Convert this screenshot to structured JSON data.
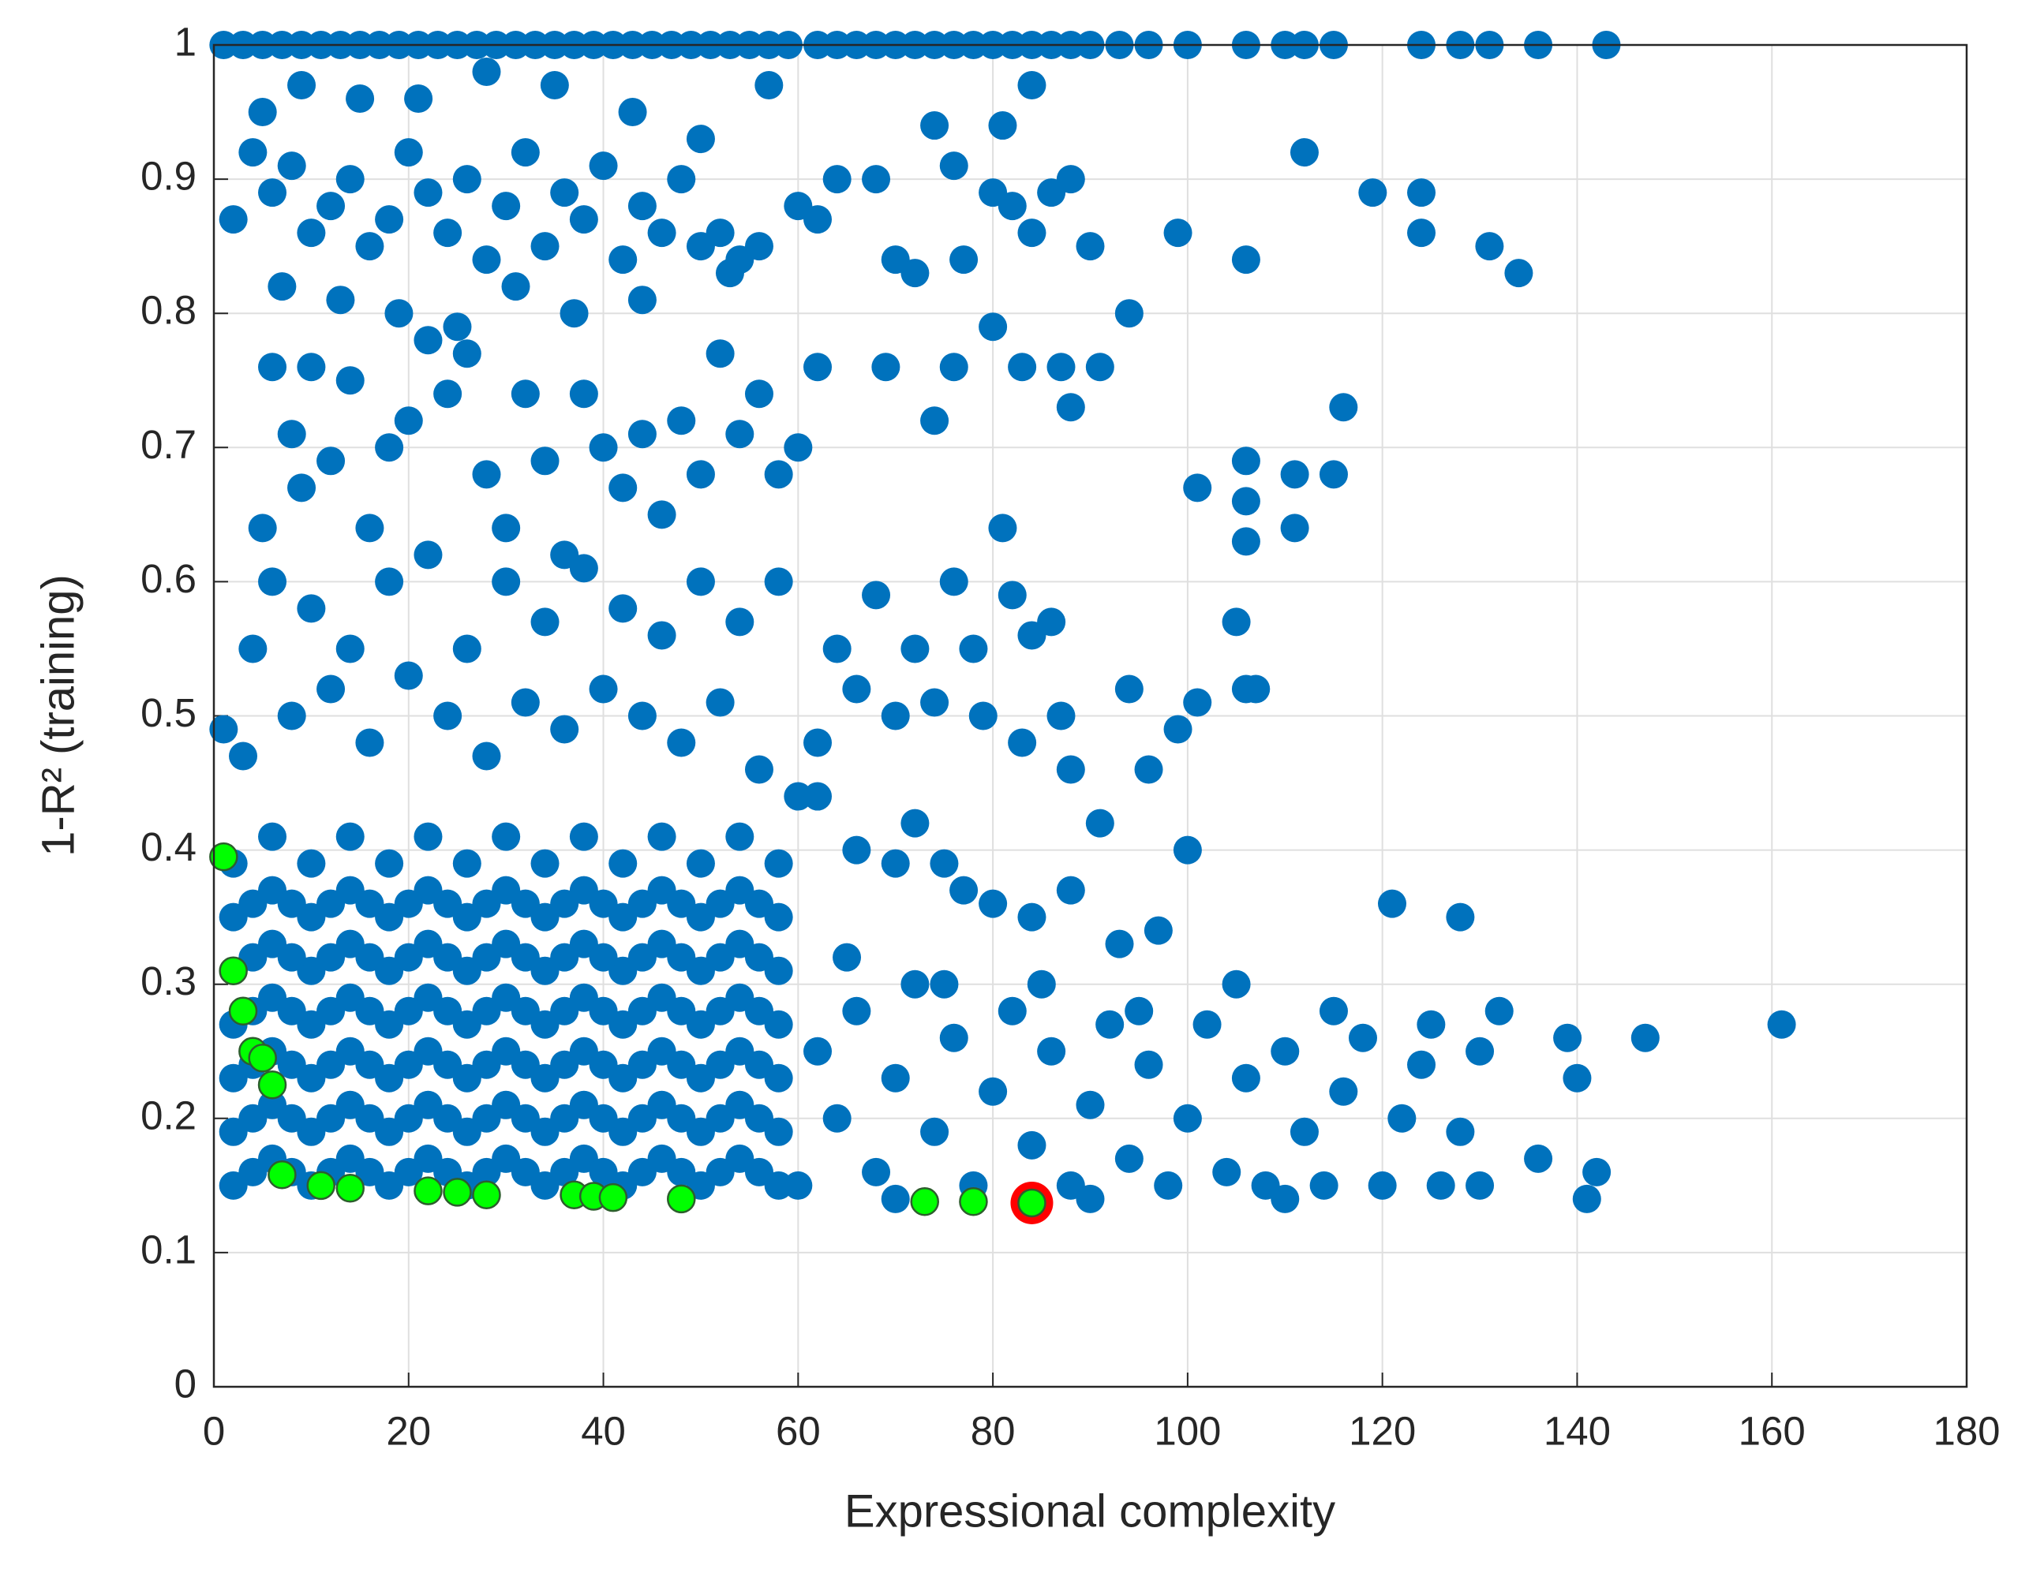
{
  "chart_data": {
    "type": "scatter",
    "xlabel": "Expressional complexity",
    "ylabel": "1-R² (training)",
    "xlim": [
      0,
      180
    ],
    "xticks": [
      0,
      20,
      40,
      60,
      80,
      100,
      120,
      140,
      160,
      180
    ],
    "ylim": [
      0,
      1
    ],
    "yticks": [
      0,
      0.1,
      0.2,
      0.3,
      0.4,
      0.5,
      0.6,
      0.7,
      0.8,
      0.9,
      1
    ],
    "grid": true,
    "series": [
      {
        "color": "#0072bd",
        "x": [
          1,
          3,
          5,
          7,
          9,
          11,
          13,
          15,
          17,
          19,
          21,
          23,
          25,
          27,
          29,
          31,
          33,
          35,
          37,
          39,
          41,
          43,
          45,
          47,
          49,
          51,
          53,
          55,
          57,
          59,
          62,
          64,
          66,
          68,
          70,
          72,
          74,
          76,
          78,
          80,
          82,
          84,
          86,
          88,
          90,
          93,
          96,
          100,
          106,
          110,
          112,
          115,
          124,
          128,
          131,
          136,
          143,
          2,
          4,
          6,
          8,
          10,
          12,
          14,
          16,
          18,
          20,
          22,
          24,
          26,
          28,
          30,
          32,
          34,
          36,
          38,
          40,
          42,
          44,
          46,
          48,
          50,
          52,
          54,
          56,
          60,
          62,
          5,
          9,
          15,
          21,
          28,
          35,
          43,
          50,
          57,
          7,
          13,
          19,
          25,
          31,
          37,
          44,
          53,
          64,
          68,
          70,
          72,
          74,
          76,
          77,
          80,
          81,
          82,
          84,
          84,
          86,
          88,
          90,
          94,
          99,
          106,
          112,
          119,
          124,
          124,
          131,
          134,
          80,
          83,
          87,
          91,
          76,
          74,
          88,
          69,
          62,
          6,
          10,
          8,
          5,
          9,
          12,
          14,
          16,
          18,
          20,
          22,
          24,
          26,
          28,
          30,
          32,
          34,
          36,
          38,
          40,
          42,
          44,
          46,
          48,
          50,
          52,
          54,
          56,
          58,
          60,
          6,
          10,
          14,
          18,
          22,
          26,
          30,
          34,
          38,
          42,
          46,
          50,
          54,
          58,
          4,
          8,
          12,
          16,
          20,
          24,
          28,
          32,
          36,
          40,
          44,
          48,
          52,
          56,
          60,
          1,
          3,
          62,
          64,
          66,
          68,
          70,
          72,
          74,
          76,
          78,
          79,
          82,
          84,
          86,
          87,
          88,
          83,
          94,
          96,
          99,
          101,
          105,
          106,
          107,
          101,
          106,
          106,
          106,
          111,
          111,
          115,
          116,
          81,
          62,
          66,
          70,
          72,
          75,
          77,
          80,
          84,
          88,
          91,
          93,
          97,
          100,
          121,
          128,
          2,
          2,
          2,
          2,
          2,
          2,
          2,
          6,
          6,
          6,
          6,
          6,
          6,
          6,
          10,
          10,
          10,
          10,
          10,
          10,
          10,
          14,
          14,
          14,
          14,
          14,
          14,
          14,
          18,
          18,
          18,
          18,
          18,
          18,
          18,
          22,
          22,
          22,
          22,
          22,
          22,
          22,
          26,
          26,
          26,
          26,
          26,
          26,
          26,
          30,
          30,
          30,
          30,
          30,
          30,
          30,
          34,
          34,
          34,
          34,
          34,
          34,
          34,
          38,
          38,
          38,
          38,
          38,
          38,
          38,
          42,
          42,
          42,
          42,
          42,
          42,
          42,
          46,
          46,
          46,
          46,
          46,
          46,
          46,
          50,
          50,
          50,
          50,
          50,
          50,
          50,
          54,
          54,
          54,
          54,
          54,
          54,
          54,
          58,
          58,
          58,
          58,
          58,
          58,
          58,
          4,
          4,
          4,
          4,
          4,
          4,
          8,
          8,
          8,
          8,
          8,
          8,
          12,
          12,
          12,
          12,
          12,
          12,
          16,
          16,
          16,
          16,
          16,
          16,
          20,
          20,
          20,
          20,
          20,
          20,
          24,
          24,
          24,
          24,
          24,
          24,
          28,
          28,
          28,
          28,
          28,
          28,
          32,
          32,
          32,
          32,
          32,
          32,
          36,
          36,
          36,
          36,
          36,
          36,
          40,
          40,
          40,
          40,
          40,
          40,
          44,
          44,
          44,
          44,
          44,
          44,
          48,
          48,
          48,
          48,
          48,
          48,
          52,
          52,
          52,
          52,
          52,
          52,
          56,
          56,
          56,
          56,
          56,
          56,
          62,
          64,
          66,
          68,
          70,
          72,
          74,
          76,
          78,
          80,
          82,
          84,
          86,
          88,
          90,
          92,
          94,
          96,
          98,
          100,
          102,
          104,
          106,
          108,
          110,
          112,
          114,
          116,
          118,
          120,
          122,
          124,
          126,
          128,
          130,
          132,
          136,
          139,
          140,
          141,
          142,
          147,
          161,
          65,
          75,
          85,
          95,
          105,
          115,
          125,
          60,
          70,
          90,
          110,
          130
        ],
        "values": [
          1,
          1,
          1,
          1,
          1,
          1,
          1,
          1,
          1,
          1,
          1,
          1,
          1,
          1,
          1,
          1,
          1,
          1,
          1,
          1,
          1,
          1,
          1,
          1,
          1,
          1,
          1,
          1,
          1,
          1,
          1,
          1,
          1,
          1,
          1,
          1,
          1,
          1,
          1,
          1,
          1,
          1,
          1,
          1,
          1,
          1,
          1,
          1,
          1,
          1,
          1,
          1,
          1,
          1,
          1,
          1,
          1,
          0.87,
          0.92,
          0.89,
          0.91,
          0.86,
          0.88,
          0.9,
          0.85,
          0.87,
          0.92,
          0.89,
          0.86,
          0.9,
          0.84,
          0.88,
          0.92,
          0.85,
          0.89,
          0.87,
          0.91,
          0.84,
          0.88,
          0.86,
          0.9,
          0.85,
          0.86,
          0.84,
          0.85,
          0.88,
          0.87,
          0.95,
          0.97,
          0.96,
          0.96,
          0.98,
          0.97,
          0.95,
          0.93,
          0.97,
          0.82,
          0.81,
          0.8,
          0.79,
          0.82,
          0.8,
          0.81,
          0.83,
          0.9,
          0.9,
          0.84,
          0.83,
          0.94,
          0.91,
          0.84,
          0.89,
          0.94,
          0.88,
          0.97,
          0.86,
          0.89,
          0.9,
          0.85,
          0.8,
          0.86,
          0.84,
          0.92,
          0.89,
          0.89,
          0.86,
          0.85,
          0.83,
          0.79,
          0.76,
          0.76,
          0.76,
          0.76,
          0.72,
          0.73,
          0.76,
          0.76,
          0.76,
          0.76,
          0.71,
          0.64,
          0.67,
          0.69,
          0.75,
          0.64,
          0.7,
          0.72,
          0.78,
          0.74,
          0.77,
          0.68,
          0.64,
          0.74,
          0.69,
          0.62,
          0.74,
          0.7,
          0.67,
          0.71,
          0.65,
          0.72,
          0.68,
          0.77,
          0.71,
          0.74,
          0.68,
          0.7,
          0.6,
          0.58,
          0.55,
          0.6,
          0.62,
          0.55,
          0.6,
          0.57,
          0.61,
          0.58,
          0.56,
          0.6,
          0.57,
          0.6,
          0.55,
          0.5,
          0.52,
          0.48,
          0.53,
          0.5,
          0.47,
          0.51,
          0.49,
          0.52,
          0.5,
          0.48,
          0.51,
          0.46,
          0.44,
          0.49,
          0.47,
          0.48,
          0.55,
          0.52,
          0.59,
          0.5,
          0.55,
          0.51,
          0.6,
          0.55,
          0.5,
          0.59,
          0.56,
          0.57,
          0.5,
          0.46,
          0.48,
          0.52,
          0.46,
          0.49,
          0.51,
          0.57,
          0.52,
          0.52,
          0.67,
          0.69,
          0.66,
          0.63,
          0.68,
          0.64,
          0.68,
          0.73,
          0.64,
          0.44,
          0.4,
          0.39,
          0.42,
          0.39,
          0.37,
          0.36,
          0.35,
          0.37,
          0.42,
          0.33,
          0.34,
          0.4,
          0.36,
          0.35,
          0.15,
          0.19,
          0.23,
          0.27,
          0.31,
          0.35,
          0.39,
          0.17,
          0.21,
          0.25,
          0.29,
          0.33,
          0.37,
          0.41,
          0.15,
          0.19,
          0.23,
          0.27,
          0.31,
          0.35,
          0.39,
          0.17,
          0.21,
          0.25,
          0.29,
          0.33,
          0.37,
          0.41,
          0.15,
          0.19,
          0.23,
          0.27,
          0.31,
          0.35,
          0.39,
          0.17,
          0.21,
          0.25,
          0.29,
          0.33,
          0.37,
          0.41,
          0.15,
          0.19,
          0.23,
          0.27,
          0.31,
          0.35,
          0.39,
          0.17,
          0.21,
          0.25,
          0.29,
          0.33,
          0.37,
          0.41,
          0.15,
          0.19,
          0.23,
          0.27,
          0.31,
          0.35,
          0.39,
          0.17,
          0.21,
          0.25,
          0.29,
          0.33,
          0.37,
          0.41,
          0.15,
          0.19,
          0.23,
          0.27,
          0.31,
          0.35,
          0.39,
          0.17,
          0.21,
          0.25,
          0.29,
          0.33,
          0.37,
          0.41,
          0.15,
          0.19,
          0.23,
          0.27,
          0.31,
          0.35,
          0.39,
          0.17,
          0.21,
          0.25,
          0.29,
          0.33,
          0.37,
          0.41,
          0.15,
          0.19,
          0.23,
          0.27,
          0.31,
          0.35,
          0.39,
          0.16,
          0.2,
          0.24,
          0.28,
          0.32,
          0.36,
          0.16,
          0.2,
          0.24,
          0.28,
          0.32,
          0.36,
          0.16,
          0.2,
          0.24,
          0.28,
          0.32,
          0.36,
          0.16,
          0.2,
          0.24,
          0.28,
          0.32,
          0.36,
          0.16,
          0.2,
          0.24,
          0.28,
          0.32,
          0.36,
          0.16,
          0.2,
          0.24,
          0.28,
          0.32,
          0.36,
          0.16,
          0.2,
          0.24,
          0.28,
          0.32,
          0.36,
          0.16,
          0.2,
          0.24,
          0.28,
          0.32,
          0.36,
          0.16,
          0.2,
          0.24,
          0.28,
          0.32,
          0.36,
          0.16,
          0.2,
          0.24,
          0.28,
          0.32,
          0.36,
          0.16,
          0.2,
          0.24,
          0.28,
          0.32,
          0.36,
          0.16,
          0.2,
          0.24,
          0.28,
          0.32,
          0.36,
          0.16,
          0.2,
          0.24,
          0.28,
          0.32,
          0.36,
          0.16,
          0.2,
          0.24,
          0.28,
          0.32,
          0.36,
          0.25,
          0.2,
          0.28,
          0.16,
          0.23,
          0.3,
          0.19,
          0.26,
          0.15,
          0.22,
          0.28,
          0.18,
          0.25,
          0.15,
          0.21,
          0.27,
          0.17,
          0.24,
          0.15,
          0.2,
          0.27,
          0.16,
          0.23,
          0.15,
          0.25,
          0.19,
          0.15,
          0.22,
          0.26,
          0.15,
          0.2,
          0.24,
          0.15,
          0.19,
          0.25,
          0.28,
          0.17,
          0.26,
          0.23,
          0.14,
          0.16,
          0.26,
          0.27,
          0.32,
          0.3,
          0.3,
          0.28,
          0.3,
          0.28,
          0.27,
          0.15,
          0.14,
          0.14,
          0.14,
          0.15
        ]
      },
      {
        "color": "#ff0000",
        "marker": "ring",
        "x": [
          84
        ],
        "values": [
          0.137
        ]
      },
      {
        "color": "#00ff00",
        "edgecolor": "#2d5e2d",
        "x": [
          1,
          2,
          3,
          4,
          5,
          6,
          7,
          11,
          14,
          22,
          25,
          28,
          37,
          39,
          41,
          48,
          73,
          78,
          84
        ],
        "values": [
          0.395,
          0.31,
          0.28,
          0.25,
          0.245,
          0.225,
          0.158,
          0.15,
          0.148,
          0.146,
          0.145,
          0.143,
          0.143,
          0.142,
          0.141,
          0.14,
          0.138,
          0.138,
          0.137
        ]
      }
    ]
  }
}
